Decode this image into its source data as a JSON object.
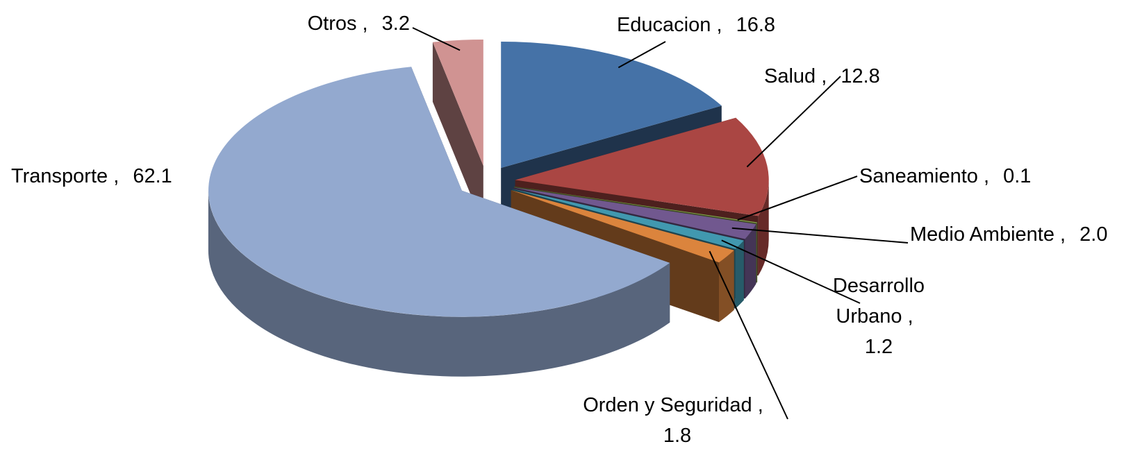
{
  "chart_data": {
    "type": "pie3d",
    "categories": [
      "Educacion",
      "Salud",
      "Saneamiento",
      "Medio Ambiente",
      "Desarrollo Urbano",
      "Orden y Seguridad",
      "Transporte",
      "Otros"
    ],
    "values": [
      16.8,
      12.8,
      0.1,
      2.0,
      1.2,
      1.8,
      62.1,
      3.2
    ],
    "value_labels": [
      "16.8",
      "12.8",
      "0.1",
      "2.0",
      "1.2",
      "1.8",
      "62.1",
      "3.2"
    ],
    "label_separator": ",",
    "colors": [
      "#4572a7",
      "#aa4643",
      "#89a54e",
      "#71588f",
      "#4198af",
      "#db843d",
      "#93a9cf",
      "#d09392"
    ]
  }
}
